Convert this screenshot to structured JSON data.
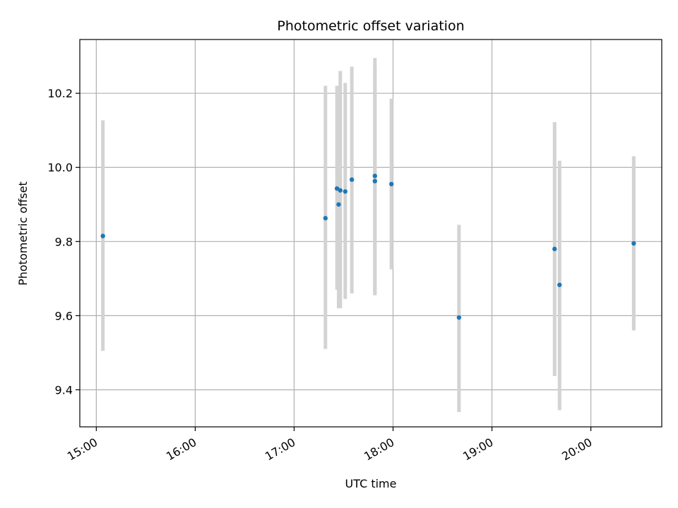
{
  "chart_data": {
    "type": "scatter",
    "title": "Photometric offset variation",
    "xlabel": "UTC time",
    "ylabel": "Photometric offset",
    "x_ticks": [
      "15:00",
      "16:00",
      "17:00",
      "18:00",
      "19:00",
      "20:00"
    ],
    "y_ticks": [
      "9.4",
      "9.6",
      "9.8",
      "10.0",
      "10.2"
    ],
    "xlim": [
      "14:50",
      "20:43"
    ],
    "ylim": [
      9.3,
      10.345
    ],
    "grid": true,
    "colors": {
      "point": "#1f77b4",
      "errorbar": "#d3d3d3",
      "grid": "#b0b0b0"
    },
    "points": [
      {
        "x": "15:04",
        "y": 9.815,
        "err_low": 9.505,
        "err_high": 10.127
      },
      {
        "x": "17:19",
        "y": 9.863,
        "err_low": 9.51,
        "err_high": 10.22
      },
      {
        "x": "17:26",
        "y": 9.943,
        "err_low": 9.67,
        "err_high": 10.22
      },
      {
        "x": "17:27",
        "y": 9.9,
        "err_low": 9.62,
        "err_high": 10.22
      },
      {
        "x": "17:28",
        "y": 9.938,
        "err_low": 9.62,
        "err_high": 10.26
      },
      {
        "x": "17:31",
        "y": 9.935,
        "err_low": 9.645,
        "err_high": 10.228
      },
      {
        "x": "17:35",
        "y": 9.967,
        "err_low": 9.66,
        "err_high": 10.272
      },
      {
        "x": "17:49",
        "y": 9.977,
        "err_low": 9.66,
        "err_high": 10.295
      },
      {
        "x": "17:49",
        "y": 9.963,
        "err_low": 9.655,
        "err_high": 10.27
      },
      {
        "x": "17:59",
        "y": 9.955,
        "err_low": 9.725,
        "err_high": 10.185
      },
      {
        "x": "18:40",
        "y": 9.595,
        "err_low": 9.34,
        "err_high": 9.845
      },
      {
        "x": "19:38",
        "y": 9.78,
        "err_low": 9.437,
        "err_high": 10.122
      },
      {
        "x": "19:41",
        "y": 9.683,
        "err_low": 9.345,
        "err_high": 10.018
      },
      {
        "x": "20:26",
        "y": 9.795,
        "err_low": 9.56,
        "err_high": 10.03
      }
    ]
  }
}
